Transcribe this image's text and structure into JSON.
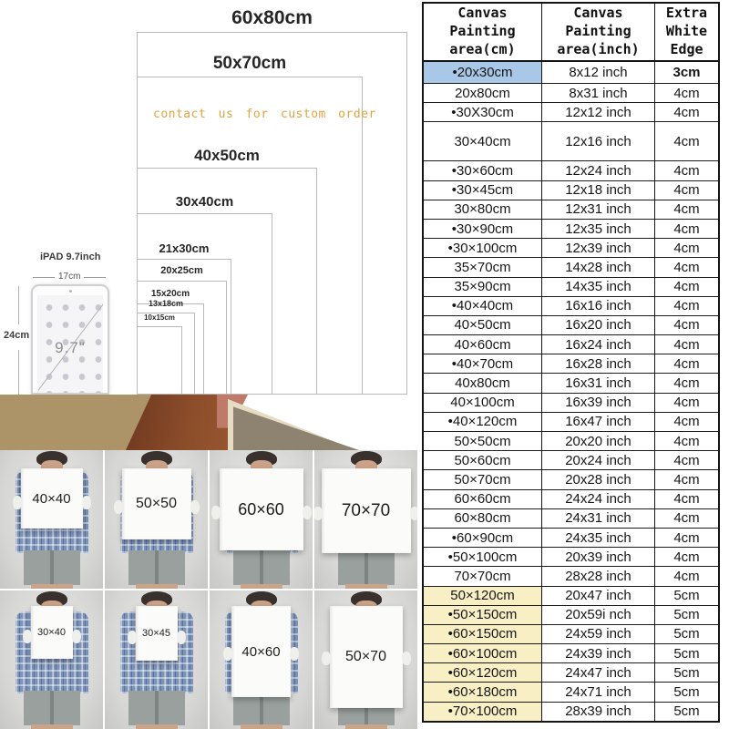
{
  "colors": {
    "highlight_blue": "#a9c8e8",
    "highlight_yellow": "#f8efc5",
    "contact_orange": "#dfa53e"
  },
  "diagram": {
    "contact_text": "contact us for  custom  order",
    "sizes": [
      {
        "label": "60x80cm",
        "w": 60,
        "h": 80
      },
      {
        "label": "50x70cm",
        "w": 50,
        "h": 70
      },
      {
        "label": "40x50cm",
        "w": 40,
        "h": 50
      },
      {
        "label": "30x40cm",
        "w": 30,
        "h": 40
      },
      {
        "label": "21x30cm",
        "w": 21,
        "h": 30
      },
      {
        "label": "20x25cm",
        "w": 20,
        "h": 25
      },
      {
        "label": "15x20cm",
        "w": 15,
        "h": 20
      },
      {
        "label": "13x18cm",
        "w": 13,
        "h": 18
      },
      {
        "label": "10x15cm",
        "w": 10,
        "h": 15
      }
    ],
    "ipad": {
      "title": "iPAD 9.7inch",
      "width_label": "17cm",
      "height_label": "24cm",
      "screen_label": "9.7\""
    }
  },
  "photos": {
    "row1": [
      "40×40",
      "50×50",
      "60×60",
      "70×70"
    ],
    "row2": [
      "30×40",
      "30×45",
      "40×60",
      "50×70"
    ]
  },
  "table": {
    "headers": [
      [
        "Canvas",
        "Painting",
        "area(cm)"
      ],
      [
        "Canvas",
        "Painting",
        "area(inch)"
      ],
      [
        "Extra",
        "White",
        "Edge"
      ]
    ],
    "rows": [
      {
        "cm": "•20x30cm",
        "inch": "8x12 inch",
        "edge": "3cm",
        "hl": "blue",
        "edge_bold": true
      },
      {
        "cm": "20x80cm",
        "inch": "8x31 inch",
        "edge": "4cm"
      },
      {
        "cm": "•30X30cm",
        "inch": "12x12 inch",
        "edge": "4cm"
      },
      {
        "cm": "30×40cm",
        "inch": "12x16 inch",
        "edge": "4cm"
      },
      {
        "cm": "•30×60cm",
        "inch": "12x24 inch",
        "edge": "4cm"
      },
      {
        "cm": "•30×45cm",
        "inch": "12x18 inch",
        "edge": "4cm"
      },
      {
        "cm": "30×80cm",
        "inch": "12x31 inch",
        "edge": "4cm"
      },
      {
        "cm": "•30×90cm",
        "inch": "12x35 inch",
        "edge": "4cm"
      },
      {
        "cm": "•30×100cm",
        "inch": "12x39 inch",
        "edge": "4cm"
      },
      {
        "cm": "35×70cm",
        "inch": "14x28 inch",
        "edge": "4cm"
      },
      {
        "cm": "35×90cm",
        "inch": "14x35 inch",
        "edge": "4cm"
      },
      {
        "cm": "•40×40cm",
        "inch": "16x16 inch",
        "edge": "4cm"
      },
      {
        "cm": "40×50cm",
        "inch": "16x20 inch",
        "edge": "4cm"
      },
      {
        "cm": "40×60cm",
        "inch": "16x24 inch",
        "edge": "4cm"
      },
      {
        "cm": "•40×70cm",
        "inch": "16x28 inch",
        "edge": "4cm"
      },
      {
        "cm": "40x80cm",
        "inch": "16x31 inch",
        "edge": "4cm"
      },
      {
        "cm": "40×100cm",
        "inch": "16x39 inch",
        "edge": "4cm"
      },
      {
        "cm": "•40×120cm",
        "inch": "16x47 inch",
        "edge": "4cm"
      },
      {
        "cm": "50×50cm",
        "inch": "20x20 inch",
        "edge": "4cm"
      },
      {
        "cm": "50×60cm",
        "inch": "20x24 inch",
        "edge": "4cm"
      },
      {
        "cm": "50×70cm",
        "inch": "20x28 inch",
        "edge": "4cm"
      },
      {
        "cm": "60×60cm",
        "inch": "24x24 inch",
        "edge": "4cm"
      },
      {
        "cm": "60×80cm",
        "inch": "24x31 inch",
        "edge": "4cm"
      },
      {
        "cm": "•60×90cm",
        "inch": "24x35 inch",
        "edge": "4cm"
      },
      {
        "cm": "•50×100cm",
        "inch": "20x39 inch",
        "edge": "4cm"
      },
      {
        "cm": "70×70cm",
        "inch": "28x28 inch",
        "edge": "4cm"
      },
      {
        "cm": "50×120cm",
        "inch": "20x47 inch",
        "edge": "5cm",
        "hl": "yellow"
      },
      {
        "cm": "•50×150cm",
        "inch": "20x59i nch",
        "edge": "5cm",
        "hl": "yellow"
      },
      {
        "cm": "•60×150cm",
        "inch": "24x59 inch",
        "edge": "5cm",
        "hl": "yellow"
      },
      {
        "cm": "•60×100cm",
        "inch": "24x39 inch",
        "edge": "5cm",
        "hl": "yellow"
      },
      {
        "cm": "•60×120cm",
        "inch": "24x47 inch",
        "edge": "5cm",
        "hl": "yellow"
      },
      {
        "cm": "•60×180cm",
        "inch": "24x71 inch",
        "edge": "5cm",
        "hl": "yellow"
      },
      {
        "cm": "•70×100cm",
        "inch": "28x39 inch",
        "edge": "5cm",
        "hl": "yellow"
      }
    ]
  }
}
